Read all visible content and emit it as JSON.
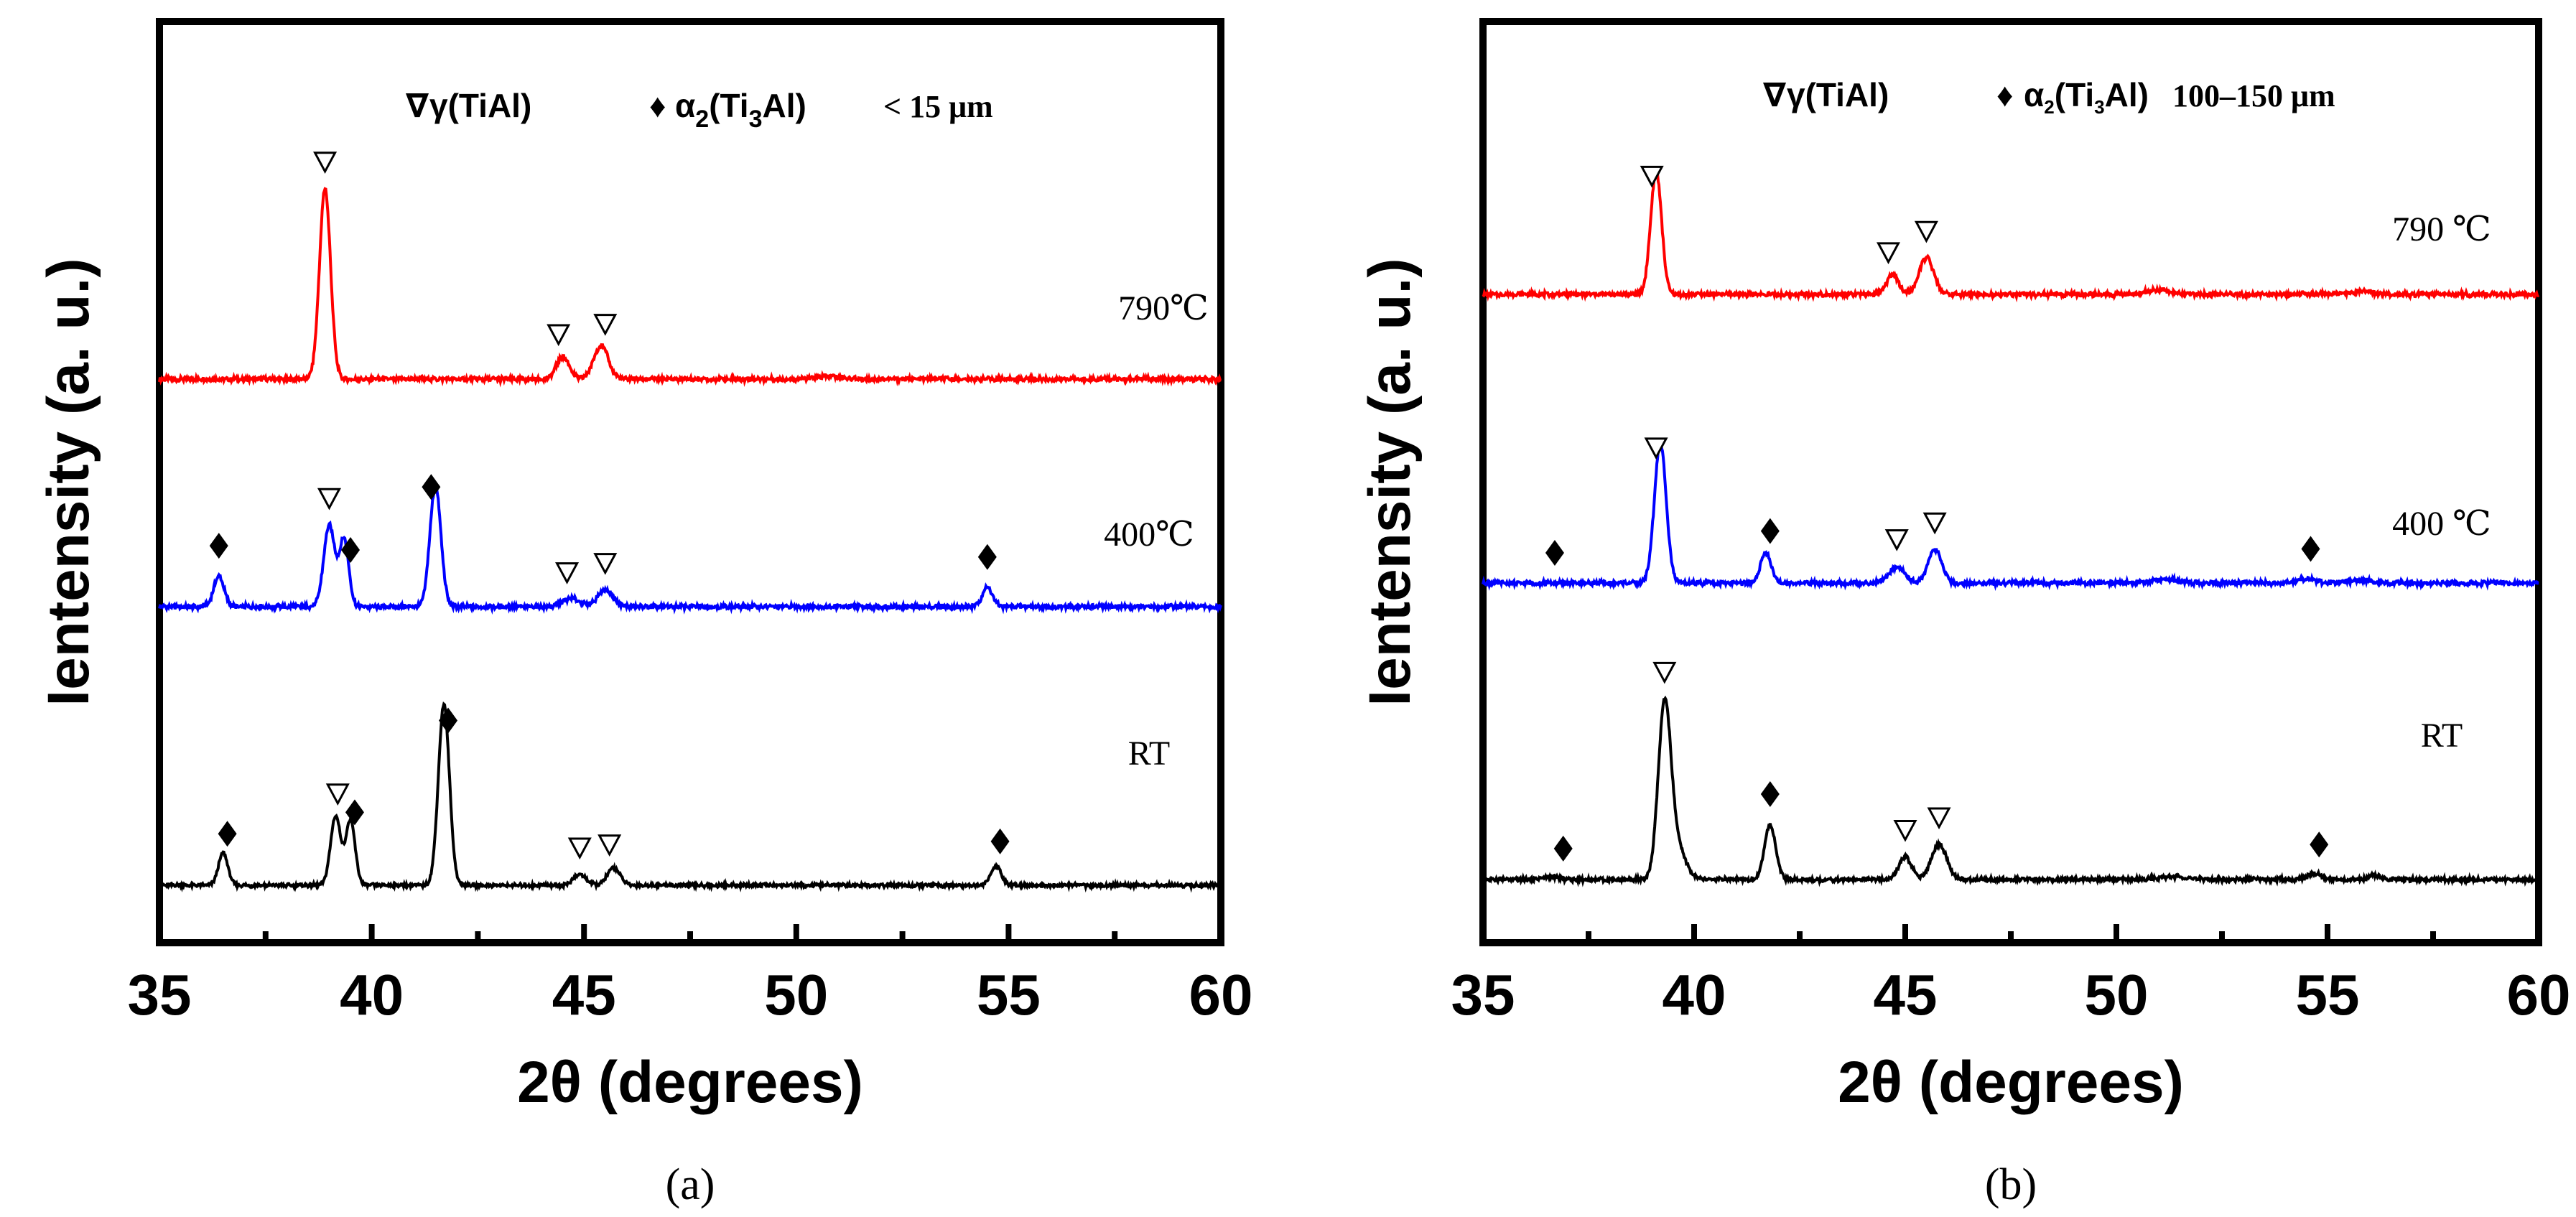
{
  "chart_data": [
    {
      "type": "line",
      "panel_label": "(a)",
      "xlabel": "2θ (degrees)",
      "ylabel": "Ientensity (a. u.)",
      "xlim": [
        35,
        60
      ],
      "xticks": [
        35,
        40,
        45,
        50,
        55,
        60
      ],
      "legend": {
        "gamma_symbol": "∇",
        "gamma_label": "γ(TiAl)",
        "alpha_symbol": "♦",
        "alpha_label_main": "α",
        "alpha_sub": "2",
        "alpha_formula_pre": "(Ti",
        "alpha_formula_sub": "3",
        "alpha_formula_post": "Al)",
        "size": "< 15 μm"
      },
      "series": [
        {
          "name": "790℃",
          "color": "#ff0000",
          "peaks": [
            [
              38.9,
              3.4,
              0.13
            ],
            [
              44.5,
              0.4,
              0.15
            ],
            [
              45.4,
              0.6,
              0.17
            ],
            [
              50.8,
              0.05,
              0.3
            ]
          ],
          "gamma_markers": [
            38.9,
            44.4,
            45.5
          ],
          "alpha_markers": []
        },
        {
          "name": "400℃",
          "color": "#0000ff",
          "peaks": [
            [
              36.4,
              0.55,
              0.12
            ],
            [
              39.0,
              1.45,
              0.13
            ],
            [
              39.35,
              1.2,
              0.11
            ],
            [
              41.5,
              2.15,
              0.13
            ],
            [
              44.7,
              0.15,
              0.2
            ],
            [
              45.5,
              0.3,
              0.18
            ],
            [
              54.5,
              0.35,
              0.12
            ]
          ],
          "gamma_markers": [
            39.0,
            44.6,
            45.5
          ],
          "alpha_markers": [
            36.4,
            39.5,
            41.4,
            54.5
          ]
        },
        {
          "name": "RT",
          "color": "#000000",
          "peaks": [
            [
              36.5,
              0.75,
              0.11
            ],
            [
              39.15,
              1.6,
              0.12
            ],
            [
              39.5,
              1.5,
              0.11
            ],
            [
              41.7,
              4.2,
              0.13
            ],
            [
              44.9,
              0.25,
              0.15
            ],
            [
              45.7,
              0.4,
              0.15
            ],
            [
              54.7,
              0.45,
              0.12
            ]
          ],
          "gamma_markers": [
            39.2,
            44.9,
            45.6
          ],
          "alpha_markers": [
            36.6,
            39.6,
            41.8,
            54.8
          ]
        }
      ]
    },
    {
      "type": "line",
      "panel_label": "(b)",
      "xlabel": "2θ (degrees)",
      "ylabel": "Ientensity (a. u.)",
      "xlim": [
        35,
        60
      ],
      "xticks": [
        35,
        40,
        45,
        50,
        55,
        60
      ],
      "legend": {
        "gamma_symbol": "∇",
        "gamma_label": "γ(TiAl)",
        "alpha_symbol": "♦",
        "alpha_label_main": "α",
        "alpha_sub": "2",
        "alpha_formula_pre": "(Ti",
        "alpha_formula_sub": "3",
        "alpha_formula_post": "Al)",
        "size": "100–150 μm"
      },
      "series": [
        {
          "name": "790 ℃",
          "color": "#ff0000",
          "peaks": [
            [
              39.1,
              2.2,
              0.13
            ],
            [
              44.7,
              0.35,
              0.14
            ],
            [
              45.5,
              0.65,
              0.17
            ],
            [
              51.0,
              0.08,
              0.3
            ],
            [
              55.8,
              0.05,
              0.3
            ]
          ],
          "gamma_markers": [
            39.0,
            44.6,
            45.5
          ],
          "alpha_markers": []
        },
        {
          "name": "400 ℃",
          "color": "#0000ff",
          "peaks": [
            [
              39.2,
              2.5,
              0.14
            ],
            [
              41.7,
              0.55,
              0.12
            ],
            [
              44.8,
              0.3,
              0.18
            ],
            [
              45.7,
              0.6,
              0.16
            ],
            [
              51.2,
              0.06,
              0.3
            ],
            [
              54.5,
              0.08,
              0.2
            ],
            [
              55.8,
              0.05,
              0.3
            ]
          ],
          "gamma_markers": [
            39.1,
            44.8,
            45.7
          ],
          "alpha_markers": [
            36.7,
            41.8,
            54.6
          ]
        },
        {
          "name": "RT",
          "color": "#000000",
          "peaks": [
            [
              39.3,
              3.4,
              0.15
            ],
            [
              39.6,
              0.6,
              0.2
            ],
            [
              41.8,
              1.1,
              0.13
            ],
            [
              45.0,
              0.45,
              0.15
            ],
            [
              45.8,
              0.7,
              0.18
            ],
            [
              51.4,
              0.06,
              0.3
            ],
            [
              54.7,
              0.12,
              0.15
            ],
            [
              56.1,
              0.1,
              0.12
            ],
            [
              36.6,
              0.05,
              0.2
            ]
          ],
          "gamma_markers": [
            39.3,
            45.0,
            45.8
          ],
          "alpha_markers": [
            36.9,
            41.8,
            54.8
          ]
        }
      ]
    }
  ]
}
